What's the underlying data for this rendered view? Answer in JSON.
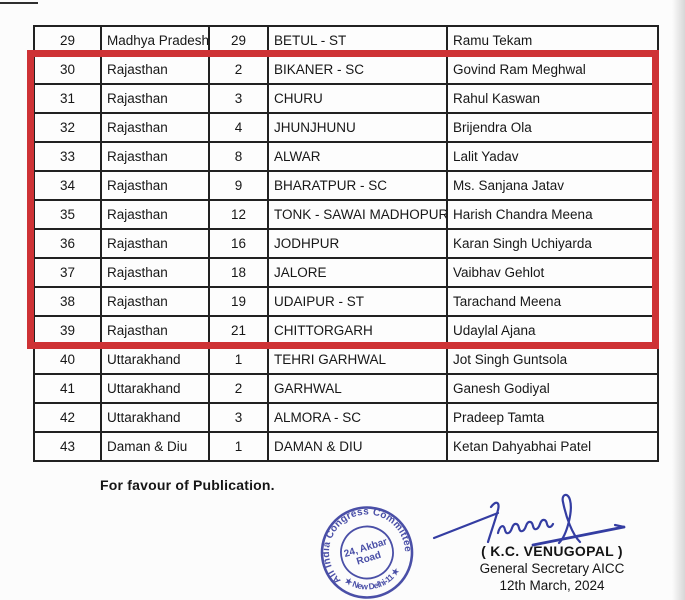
{
  "table": {
    "highlight": {
      "from_serial": "30",
      "to_serial": "39",
      "color": "#ce3235"
    },
    "columns": [
      "serial",
      "state",
      "constituency_no",
      "constituency",
      "candidate"
    ],
    "rows": [
      {
        "serial": "29",
        "state": "Madhya Pradesh",
        "constituency_no": "29",
        "constituency": "BETUL - ST",
        "candidate": "Ramu Tekam",
        "highlighted": false
      },
      {
        "serial": "30",
        "state": "Rajasthan",
        "constituency_no": "2",
        "constituency": "BIKANER - SC",
        "candidate": "Govind Ram Meghwal",
        "highlighted": true
      },
      {
        "serial": "31",
        "state": "Rajasthan",
        "constituency_no": "3",
        "constituency": "CHURU",
        "candidate": "Rahul Kaswan",
        "highlighted": true
      },
      {
        "serial": "32",
        "state": "Rajasthan",
        "constituency_no": "4",
        "constituency": "JHUNJHUNU",
        "candidate": "Brijendra Ola",
        "highlighted": true
      },
      {
        "serial": "33",
        "state": "Rajasthan",
        "constituency_no": "8",
        "constituency": "ALWAR",
        "candidate": "Lalit Yadav",
        "highlighted": true
      },
      {
        "serial": "34",
        "state": "Rajasthan",
        "constituency_no": "9",
        "constituency": "BHARATPUR - SC",
        "candidate": "Ms. Sanjana Jatav",
        "highlighted": true
      },
      {
        "serial": "35",
        "state": "Rajasthan",
        "constituency_no": "12",
        "constituency": "TONK - SAWAI MADHOPUR",
        "candidate": "Harish Chandra Meena",
        "highlighted": true
      },
      {
        "serial": "36",
        "state": "Rajasthan",
        "constituency_no": "16",
        "constituency": "JODHPUR",
        "candidate": "Karan Singh Uchiyarda",
        "highlighted": true
      },
      {
        "serial": "37",
        "state": "Rajasthan",
        "constituency_no": "18",
        "constituency": "JALORE",
        "candidate": "Vaibhav Gehlot",
        "highlighted": true
      },
      {
        "serial": "38",
        "state": "Rajasthan",
        "constituency_no": "19",
        "constituency": "UDAIPUR - ST",
        "candidate": "Tarachand Meena",
        "highlighted": true
      },
      {
        "serial": "39",
        "state": "Rajasthan",
        "constituency_no": "21",
        "constituency": "CHITTORGARH",
        "candidate": "Udaylal Ajana",
        "highlighted": true
      },
      {
        "serial": "40",
        "state": "Uttarakhand",
        "constituency_no": "1",
        "constituency": "TEHRI GARHWAL",
        "candidate": "Jot Singh Guntsola",
        "highlighted": false
      },
      {
        "serial": "41",
        "state": "Uttarakhand",
        "constituency_no": "2",
        "constituency": "GARHWAL",
        "candidate": "Ganesh Godiyal",
        "highlighted": false
      },
      {
        "serial": "42",
        "state": "Uttarakhand",
        "constituency_no": "3",
        "constituency": "ALMORA - SC",
        "candidate": "Pradeep Tamta",
        "highlighted": false
      },
      {
        "serial": "43",
        "state": "Daman & Diu",
        "constituency_no": "1",
        "constituency": "DAMAN & DIU",
        "candidate": "Ketan Dahyabhai Patel",
        "highlighted": false
      }
    ]
  },
  "footer": {
    "publication_note": "For favour of Publication.",
    "stamp": {
      "ring_text": "All India Congress Committee",
      "center_line1": "24, Akbar",
      "center_line2": "Road",
      "bottom_text": "★ New Delhi-11 ★",
      "ink_color": "#3b41a0"
    },
    "signature": {
      "ink_color": "#2a339e"
    },
    "signatory": {
      "name": "( K.C. VENUGOPAL )",
      "title": "General Secretary AICC",
      "date": "12th March, 2024"
    }
  }
}
